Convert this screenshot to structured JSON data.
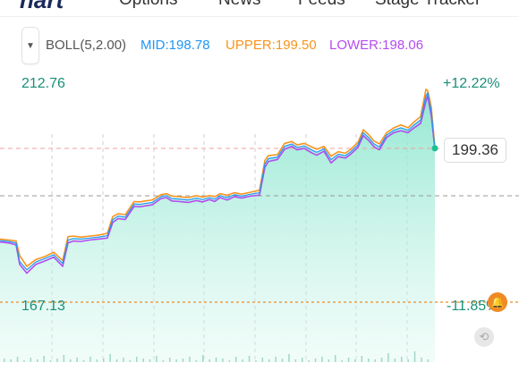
{
  "nav": {
    "logo": "hart",
    "items": [
      "Options",
      "News",
      "Feeds",
      "Stage Tracker"
    ]
  },
  "indicator": {
    "name": "BOLL(5,2.00)",
    "mid": "MID:198.78",
    "upper": "UPPER:199.50",
    "lower": "LOWER:198.06",
    "colors": {
      "name": "#555555",
      "mid": "#2196f3",
      "upper": "#f7941d",
      "lower": "#b44bf0"
    }
  },
  "axis": {
    "high_price": "212.76",
    "high_pct": "+12.22%",
    "low_price": "167.13",
    "low_pct": "-11.85%",
    "current_price": "199.36"
  },
  "icons": {
    "dropdown": "triangle-down-icon",
    "alert": "bell-icon",
    "reset": "reset-view-icon"
  },
  "chart_data": {
    "type": "area",
    "ylim": [
      167.13,
      212.76
    ],
    "x": [
      0,
      10,
      18,
      22,
      30,
      40,
      50,
      60,
      70,
      76,
      82,
      90,
      100,
      110,
      120,
      126,
      132,
      140,
      150,
      156,
      162,
      170,
      180,
      186,
      192,
      200,
      210,
      220,
      226,
      234,
      240,
      246,
      254,
      262,
      270,
      280,
      290,
      296,
      300,
      310,
      318,
      326,
      332,
      340,
      348,
      354,
      362,
      370,
      378,
      386,
      392,
      400,
      406,
      412,
      418,
      424,
      432,
      440,
      448,
      456,
      462,
      470,
      476,
      478,
      480,
      482,
      486
    ],
    "values": [
      180.5,
      180.3,
      180.0,
      176.2,
      174.5,
      176.1,
      176.8,
      177.6,
      175.8,
      180.6,
      180.9,
      180.8,
      181.0,
      181.2,
      181.5,
      184.8,
      185.5,
      185.3,
      188.0,
      187.9,
      188.1,
      188.3,
      189.5,
      189.7,
      189.1,
      189.0,
      188.8,
      189.2,
      188.9,
      189.3,
      189.0,
      189.7,
      189.3,
      189.9,
      189.6,
      190.0,
      190.3,
      196.2,
      197.3,
      197.6,
      199.8,
      200.3,
      199.6,
      199.9,
      199.1,
      198.6,
      199.3,
      197.1,
      198.2,
      197.9,
      198.7,
      200.1,
      202.6,
      201.6,
      200.3,
      199.7,
      202.1,
      203.1,
      203.6,
      203.1,
      204.1,
      205.2,
      210.2,
      210.8,
      208.8,
      206.9,
      199.4
    ],
    "upper": [
      180.8,
      180.6,
      180.4,
      177.4,
      175.2,
      176.6,
      177.2,
      178.1,
      176.4,
      181.3,
      181.4,
      181.2,
      181.4,
      181.6,
      182.0,
      185.4,
      186.0,
      185.8,
      188.5,
      188.4,
      188.6,
      188.8,
      189.9,
      190.1,
      189.6,
      189.5,
      189.3,
      189.7,
      189.4,
      189.7,
      189.5,
      190.1,
      189.8,
      190.3,
      190.0,
      190.4,
      190.8,
      196.9,
      197.9,
      198.1,
      200.4,
      200.8,
      200.1,
      200.4,
      199.7,
      199.2,
      199.8,
      197.8,
      198.7,
      198.4,
      199.2,
      200.6,
      203.2,
      202.2,
      200.9,
      200.3,
      202.6,
      203.6,
      204.2,
      203.6,
      204.7,
      205.9,
      211.5,
      211.2,
      209.6,
      207.8,
      199.6
    ],
    "lower": [
      180.2,
      180.0,
      179.6,
      175.6,
      173.8,
      175.6,
      176.3,
      177.1,
      175.2,
      180.0,
      180.4,
      180.3,
      180.6,
      180.8,
      181.0,
      184.2,
      185.0,
      184.8,
      187.5,
      187.4,
      187.6,
      187.8,
      189.1,
      189.3,
      188.6,
      188.5,
      188.3,
      188.7,
      188.4,
      188.9,
      188.5,
      189.3,
      188.8,
      189.5,
      189.2,
      189.6,
      189.8,
      195.5,
      196.7,
      197.1,
      199.2,
      199.8,
      199.1,
      199.4,
      198.5,
      198.0,
      198.8,
      196.4,
      197.7,
      197.4,
      198.2,
      199.6,
      202.0,
      201.0,
      199.7,
      199.1,
      201.6,
      202.6,
      203.0,
      202.6,
      203.5,
      204.5,
      209.0,
      210.2,
      208.0,
      206.0,
      199.2
    ]
  }
}
